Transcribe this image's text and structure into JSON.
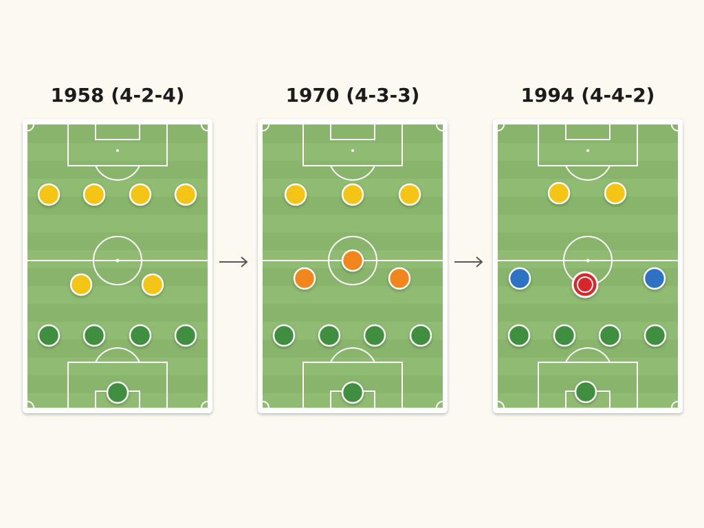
{
  "panels": [
    {
      "title": "1958 (4-2-4)"
    },
    {
      "title": "1970 (4-3-3)"
    },
    {
      "title": "1994 (4-4-2)"
    }
  ]
}
